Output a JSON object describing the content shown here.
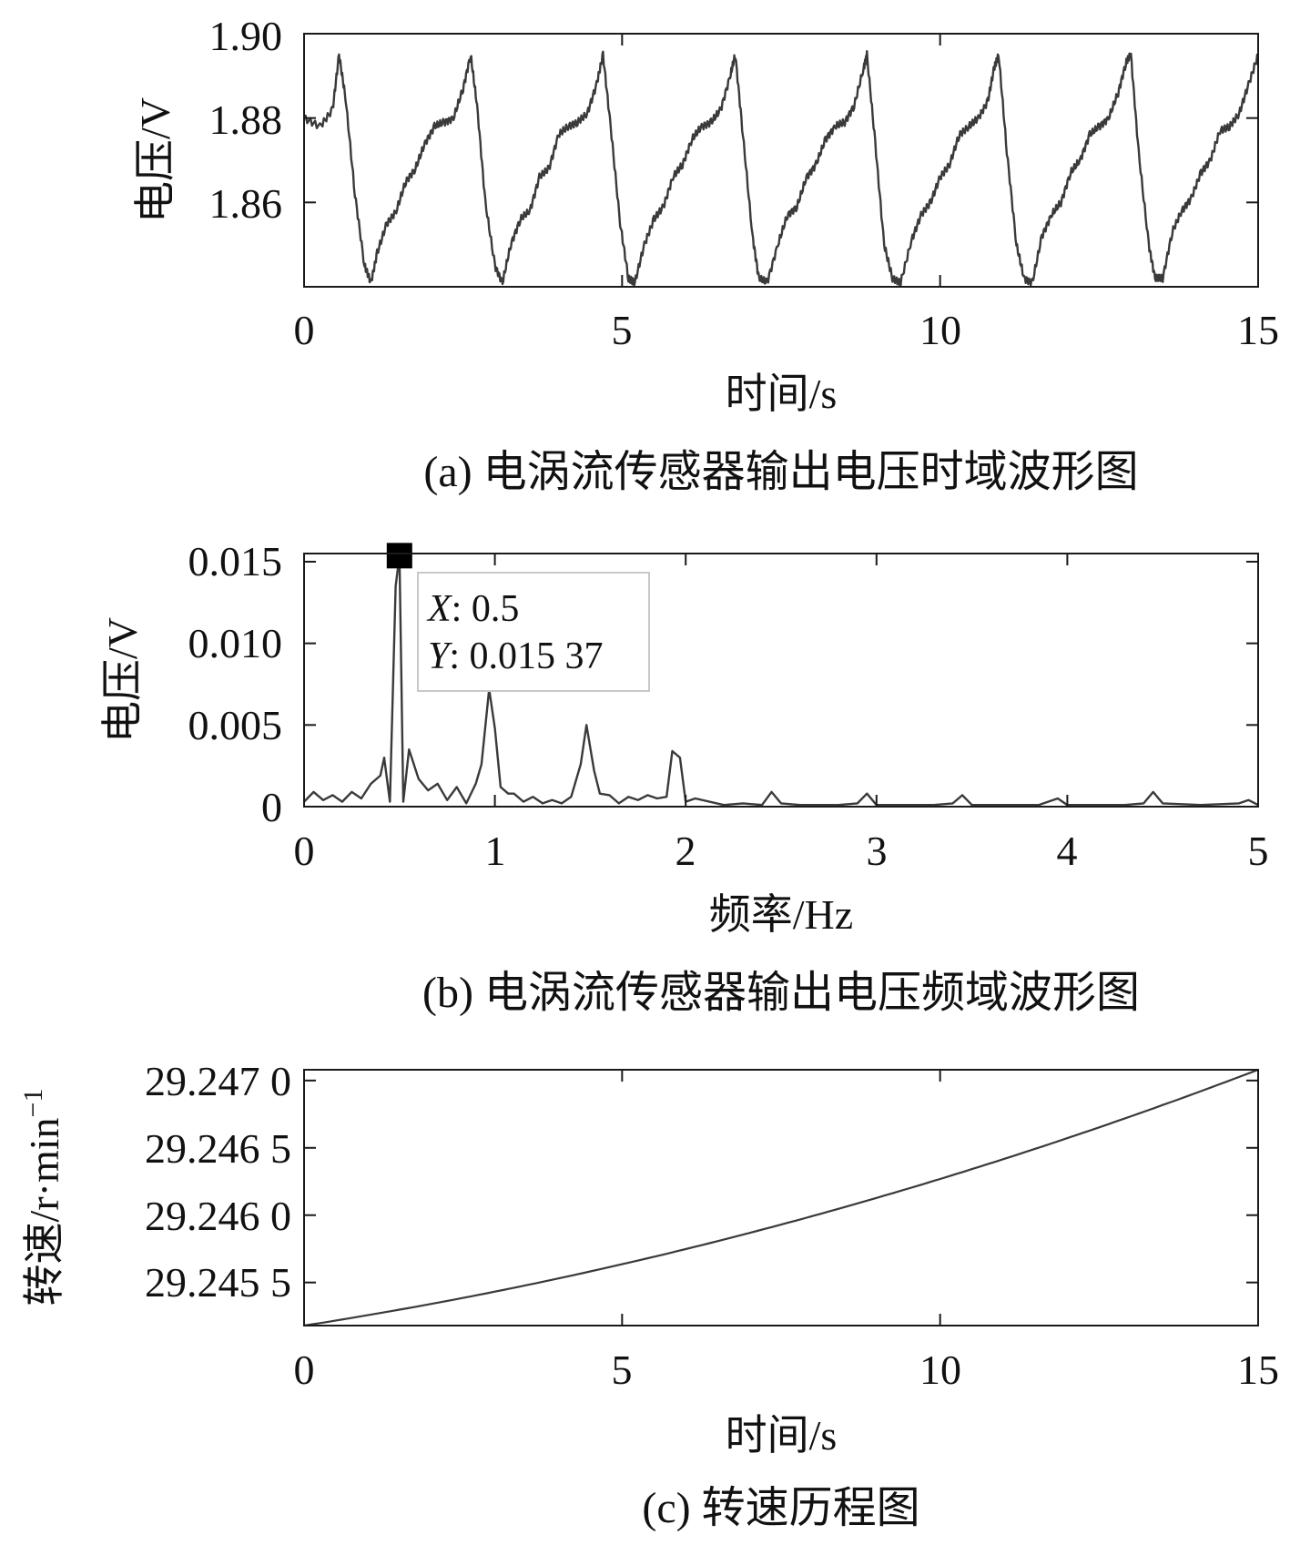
{
  "chart_data": [
    {
      "type": "line",
      "panel": "a",
      "caption": "(a) 电涡流传感器输出电压时域波形图",
      "xlabel": "时间/s",
      "ylabel": "电压/V",
      "xlim": [
        0,
        15
      ],
      "ylim": [
        1.84,
        1.9
      ],
      "xticks": [
        0,
        5,
        10,
        15
      ],
      "xtick_labels": [
        "0",
        "5",
        "10",
        "15"
      ],
      "yticks": [
        1.86,
        1.88,
        1.9
      ],
      "ytick_labels": [
        "1.86",
        "1.88",
        "1.90"
      ],
      "period": 2.07,
      "x": [
        0,
        0.25,
        0.45,
        0.55,
        0.65,
        0.8,
        0.95,
        1.05,
        1.15,
        1.3,
        1.45,
        1.6,
        1.75,
        1.9,
        2.05,
        2.2,
        2.35,
        2.5,
        2.62,
        2.72,
        2.85,
        3.0,
        3.12,
        3.25,
        3.4,
        3.55,
        3.7,
        3.85,
        4.0,
        4.15,
        4.3,
        4.45,
        4.6,
        4.7,
        4.82,
        4.97,
        5.1,
        5.2,
        5.35,
        5.5,
        5.65,
        5.8,
        5.95,
        6.1,
        6.25,
        6.4,
        6.55,
        6.7,
        6.78,
        6.9,
        7.05,
        7.15,
        7.28,
        7.45,
        7.6,
        7.75,
        7.9,
        8.05,
        8.2,
        8.35,
        8.5,
        8.65,
        8.8,
        8.85,
        8.98,
        9.12,
        9.25,
        9.38,
        9.55,
        9.7,
        9.85,
        10.0,
        10.15,
        10.3,
        10.45,
        10.6,
        10.75,
        10.85,
        10.92,
        11.05,
        11.2,
        11.32,
        11.45,
        11.6,
        11.75,
        11.9,
        12.05,
        12.2,
        12.35,
        12.5,
        12.65,
        12.8,
        12.92,
        13.0,
        13.12,
        13.28,
        13.38,
        13.5,
        13.65,
        13.8,
        13.95,
        14.1,
        14.25,
        14.4,
        14.55,
        14.7,
        14.85,
        15.0
      ],
      "values": [
        1.88,
        1.878,
        1.882,
        1.895,
        1.885,
        1.862,
        1.845,
        1.841,
        1.848,
        1.855,
        1.858,
        1.865,
        1.868,
        1.874,
        1.878,
        1.879,
        1.88,
        1.887,
        1.895,
        1.883,
        1.86,
        1.845,
        1.841,
        1.85,
        1.856,
        1.858,
        1.866,
        1.868,
        1.876,
        1.878,
        1.879,
        1.881,
        1.888,
        1.895,
        1.878,
        1.855,
        1.842,
        1.841,
        1.85,
        1.856,
        1.859,
        1.866,
        1.869,
        1.875,
        1.878,
        1.879,
        1.882,
        1.89,
        1.895,
        1.876,
        1.852,
        1.842,
        1.841,
        1.85,
        1.857,
        1.859,
        1.866,
        1.869,
        1.875,
        1.878,
        1.879,
        1.883,
        1.892,
        1.895,
        1.874,
        1.85,
        1.842,
        1.841,
        1.851,
        1.857,
        1.86,
        1.866,
        1.869,
        1.876,
        1.878,
        1.88,
        1.884,
        1.892,
        1.895,
        1.872,
        1.85,
        1.842,
        1.841,
        1.852,
        1.857,
        1.86,
        1.867,
        1.87,
        1.876,
        1.878,
        1.88,
        1.886,
        1.893,
        1.895,
        1.872,
        1.85,
        1.842,
        1.842,
        1.853,
        1.858,
        1.861,
        1.867,
        1.87,
        1.877,
        1.878,
        1.881,
        1.888,
        1.895
      ]
    },
    {
      "type": "line",
      "panel": "b",
      "caption": "(b) 电涡流传感器输出电压频域波形图",
      "xlabel": "频率/Hz",
      "ylabel": "电压/V",
      "xlim": [
        0,
        5
      ],
      "ylim": [
        0,
        0.0155
      ],
      "xticks": [
        0,
        1,
        2,
        3,
        4,
        5
      ],
      "xtick_labels": [
        "0",
        "1",
        "2",
        "3",
        "4",
        "5"
      ],
      "yticks": [
        0,
        0.005,
        0.01,
        0.015
      ],
      "ytick_labels": [
        "0",
        "0.005",
        "0.010",
        "0.015"
      ],
      "x": [
        0,
        0.05,
        0.1,
        0.15,
        0.2,
        0.25,
        0.3,
        0.35,
        0.4,
        0.42,
        0.45,
        0.48,
        0.5,
        0.52,
        0.55,
        0.6,
        0.65,
        0.7,
        0.75,
        0.8,
        0.85,
        0.9,
        0.93,
        0.97,
        1.0,
        1.03,
        1.07,
        1.1,
        1.15,
        1.2,
        1.25,
        1.3,
        1.35,
        1.4,
        1.45,
        1.48,
        1.52,
        1.55,
        1.6,
        1.65,
        1.7,
        1.75,
        1.8,
        1.85,
        1.9,
        1.93,
        1.97,
        2.0,
        2.05,
        2.2,
        2.3,
        2.4,
        2.45,
        2.5,
        2.6,
        2.8,
        2.9,
        2.95,
        3.0,
        3.1,
        3.3,
        3.4,
        3.45,
        3.5,
        3.7,
        3.85,
        3.95,
        4.0,
        4.1,
        4.3,
        4.4,
        4.45,
        4.5,
        4.7,
        4.9,
        4.95,
        5.0
      ],
      "values": [
        0.0003,
        0.0009,
        0.0004,
        0.0007,
        0.0003,
        0.0009,
        0.0005,
        0.0014,
        0.0019,
        0.003,
        0.0003,
        0.0135,
        0.01537,
        0.0003,
        0.0035,
        0.0017,
        0.001,
        0.0014,
        0.0004,
        0.0012,
        0.0002,
        0.0014,
        0.0026,
        0.0072,
        0.0048,
        0.0012,
        0.0008,
        0.0008,
        0.0003,
        0.0006,
        0.0002,
        0.0004,
        0.0002,
        0.0006,
        0.0026,
        0.005,
        0.0022,
        0.0008,
        0.0007,
        0.0002,
        0.0006,
        0.0004,
        0.0007,
        0.0005,
        0.0006,
        0.0034,
        0.003,
        0.0003,
        0.0005,
        0.0001,
        0.0002,
        0.0001,
        0.0009,
        0.0002,
        0.0001,
        0.0001,
        0.0002,
        0.0008,
        0.0001,
        0.0001,
        0.0001,
        0.0002,
        0.0007,
        0.0001,
        0.0001,
        0.0001,
        0.0005,
        0.0001,
        0.0001,
        0.0001,
        0.0002,
        0.0009,
        0.0002,
        0.0001,
        0.0002,
        0.0004,
        0.0001
      ],
      "datatip": {
        "x": 0.5,
        "y": 0.01537,
        "x_label": "X",
        "y_label": "Y",
        "x_value": ": 0.5",
        "y_value": ": 0.015 37"
      }
    },
    {
      "type": "line",
      "panel": "c",
      "caption": "(c) 转速历程图",
      "xlabel": "时间/s",
      "ylabel_main": "转速/r·min",
      "ylabel_sup": "−1",
      "xlim": [
        0,
        15
      ],
      "ylim": [
        29.24518,
        29.24708
      ],
      "xticks": [
        0,
        5,
        10,
        15
      ],
      "xtick_labels": [
        "0",
        "5",
        "10",
        "15"
      ],
      "yticks": [
        29.2455,
        29.246,
        29.2465,
        29.247
      ],
      "ytick_labels": [
        "29.245 5",
        "29.246 0",
        "29.246 5",
        "29.247 0"
      ],
      "x": [
        0,
        2.5,
        5,
        7.5,
        10,
        12.5,
        15
      ],
      "values": [
        29.24518,
        29.24539,
        29.24564,
        29.24593,
        29.24627,
        29.24665,
        29.24708
      ]
    }
  ]
}
